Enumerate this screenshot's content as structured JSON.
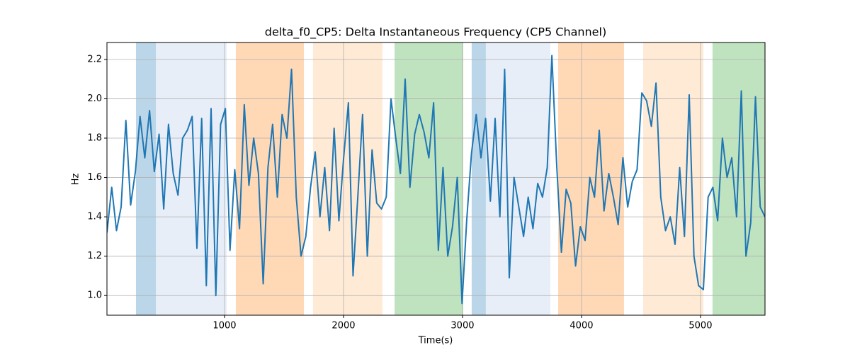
{
  "chart_data": {
    "type": "line",
    "title": "delta_f0_CP5: Delta Instantaneous Frequency (CP5 Channel)",
    "x_label": "Time(s)",
    "y_label": "Hz",
    "xlim": [
      12,
      5542
    ],
    "ylim": [
      0.9,
      2.286
    ],
    "xticks": [
      1000,
      2000,
      3000,
      4000,
      5000
    ],
    "yticks": [
      {
        "value": 1,
        "label": "1.0"
      },
      1.2,
      1.4,
      1.6,
      1.8,
      {
        "value": 2,
        "label": "2.0"
      },
      2.2
    ],
    "grid": true,
    "spans": [
      {
        "start": 256,
        "end": 423,
        "color": "#1f77b4"
      },
      {
        "start": 423,
        "end": 1018,
        "color": "#aec7e8"
      },
      {
        "start": 1095,
        "end": 1667,
        "color": "#ff7f0e"
      },
      {
        "start": 1744,
        "end": 2327,
        "color": "#ffbb78"
      },
      {
        "start": 2429,
        "end": 3006,
        "color": "#2ca02c"
      },
      {
        "start": 3077,
        "end": 3196,
        "color": "#1f77b4"
      },
      {
        "start": 3196,
        "end": 3738,
        "color": "#aec7e8"
      },
      {
        "start": 3804,
        "end": 4357,
        "color": "#ff7f0e"
      },
      {
        "start": 4518,
        "end": 5024,
        "color": "#ffbb78"
      },
      {
        "start": 5101,
        "end": 5542,
        "color": "#2ca02c"
      }
    ],
    "x": [
      12,
      52,
      92,
      131,
      171,
      211,
      251,
      290,
      330,
      370,
      410,
      450,
      489,
      529,
      569,
      609,
      648,
      688,
      728,
      768,
      808,
      847,
      887,
      927,
      967,
      1007,
      1046,
      1086,
      1126,
      1166,
      1205,
      1245,
      1285,
      1325,
      1365,
      1404,
      1444,
      1484,
      1524,
      1563,
      1603,
      1643,
      1683,
      1723,
      1762,
      1802,
      1842,
      1882,
      1921,
      1961,
      2001,
      2041,
      2080,
      2120,
      2160,
      2200,
      2240,
      2279,
      2319,
      2359,
      2399,
      2439,
      2478,
      2518,
      2558,
      2598,
      2637,
      2677,
      2717,
      2757,
      2797,
      2836,
      2876,
      2916,
      2956,
      2996,
      3035,
      3075,
      3115,
      3155,
      3194,
      3234,
      3274,
      3314,
      3354,
      3393,
      3433,
      3473,
      3513,
      3552,
      3592,
      3632,
      3672,
      3712,
      3751,
      3791,
      3831,
      3871,
      3910,
      3950,
      3990,
      4030,
      4070,
      4109,
      4149,
      4189,
      4229,
      4268,
      4308,
      4348,
      4388,
      4427,
      4467,
      4507,
      4547,
      4587,
      4626,
      4666,
      4706,
      4746,
      4786,
      4825,
      4865,
      4905,
      4945,
      4984,
      5024,
      5064,
      5104,
      5144,
      5184,
      5223,
      5263,
      5303,
      5343,
      5382,
      5422,
      5462,
      5502,
      5542
    ],
    "series": [
      {
        "name": "delta_f0_CP5",
        "color": "#1f77b4",
        "values": [
          1.32,
          1.55,
          1.33,
          1.45,
          1.89,
          1.46,
          1.63,
          1.91,
          1.7,
          1.94,
          1.63,
          1.82,
          1.44,
          1.87,
          1.62,
          1.51,
          1.8,
          1.84,
          1.91,
          1.24,
          1.9,
          1.05,
          1.95,
          1.0,
          1.87,
          1.95,
          1.23,
          1.64,
          1.34,
          1.97,
          1.56,
          1.8,
          1.62,
          1.06,
          1.65,
          1.87,
          1.5,
          1.92,
          1.8,
          2.15,
          1.5,
          1.2,
          1.3,
          1.55,
          1.73,
          1.4,
          1.65,
          1.33,
          1.85,
          1.38,
          1.7,
          1.98,
          1.1,
          1.5,
          1.92,
          1.2,
          1.74,
          1.47,
          1.44,
          1.5,
          2.0,
          1.8,
          1.62,
          2.1,
          1.55,
          1.82,
          1.92,
          1.83,
          1.7,
          1.98,
          1.23,
          1.65,
          1.2,
          1.35,
          1.6,
          0.96,
          1.38,
          1.72,
          1.92,
          1.7,
          1.9,
          1.48,
          1.9,
          1.4,
          2.15,
          1.09,
          1.6,
          1.45,
          1.3,
          1.5,
          1.34,
          1.57,
          1.5,
          1.65,
          2.22,
          1.67,
          1.22,
          1.54,
          1.47,
          1.15,
          1.35,
          1.28,
          1.6,
          1.5,
          1.84,
          1.43,
          1.62,
          1.5,
          1.36,
          1.7,
          1.45,
          1.58,
          1.64,
          2.03,
          1.99,
          1.86,
          2.08,
          1.5,
          1.33,
          1.4,
          1.26,
          1.65,
          1.3,
          2.02,
          1.2,
          1.05,
          1.03,
          1.5,
          1.55,
          1.38,
          1.8,
          1.6,
          1.7,
          1.4,
          2.04,
          1.2,
          1.37,
          2.01,
          1.45,
          1.4
        ]
      }
    ]
  }
}
